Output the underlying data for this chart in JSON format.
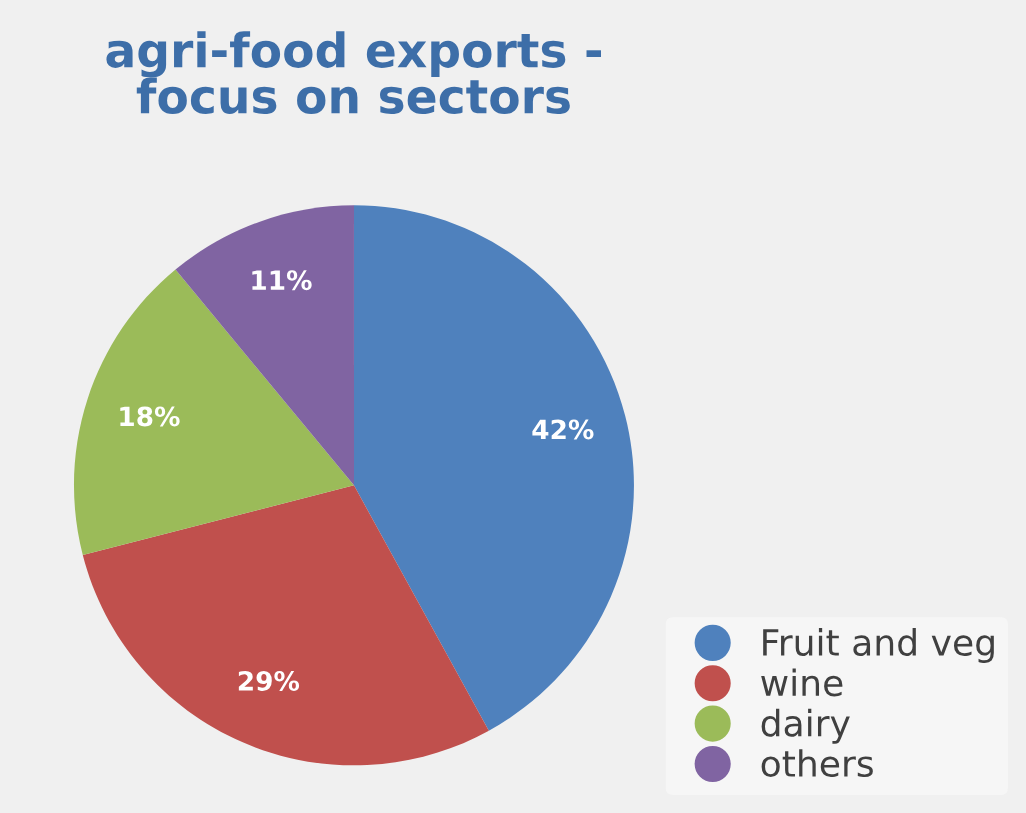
{
  "chart_data": {
    "type": "pie",
    "title": "agri-food exports -\nfocus on sectors",
    "categories": [
      "Fruit and veg",
      "wine",
      "dairy",
      "others"
    ],
    "values": [
      42,
      29,
      18,
      11
    ],
    "colors": [
      "#4f81bd",
      "#c0504d",
      "#9bbb59",
      "#8064a2"
    ],
    "value_labels": [
      "42%",
      "29%",
      "18%",
      "11%"
    ],
    "legend": "bottom right"
  }
}
